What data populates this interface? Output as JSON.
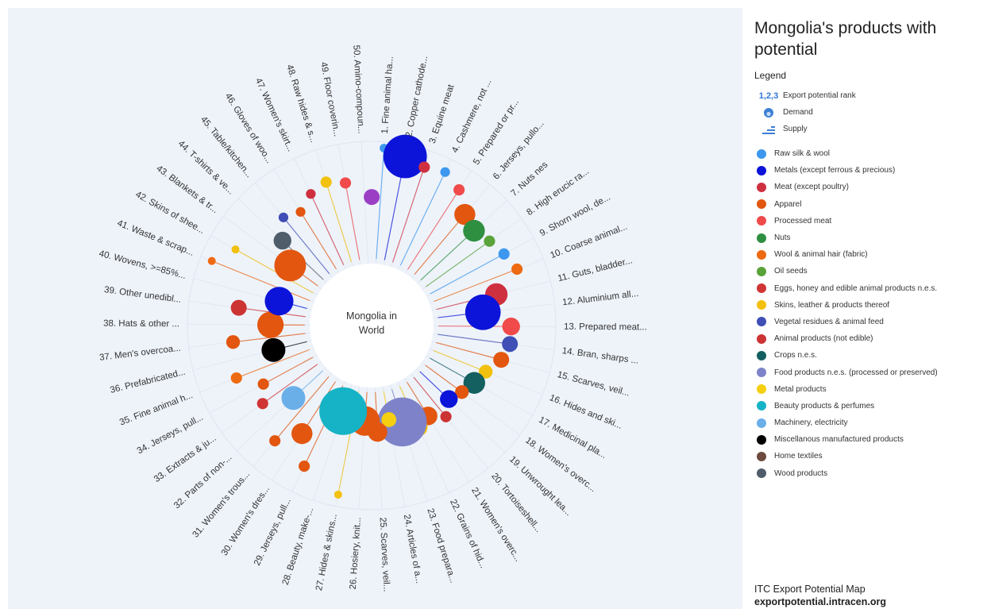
{
  "title": "Mongolia's products with potential",
  "legend": {
    "heading": "Legend",
    "keys": [
      {
        "icon": "rank-glyph",
        "glyph": "1,2,3",
        "label": "Export potential rank"
      },
      {
        "icon": "demand-icon",
        "label": "Demand"
      },
      {
        "icon": "supply-icon",
        "label": "Supply"
      }
    ],
    "categories": [
      {
        "label": "Raw silk & wool",
        "color": "#3d97ee"
      },
      {
        "label": "Metals (except ferrous & precious)",
        "color": "#0c14d9"
      },
      {
        "label": "Meat (except poultry)",
        "color": "#cf3040"
      },
      {
        "label": "Apparel",
        "color": "#e2560f"
      },
      {
        "label": "Processed meat",
        "color": "#f04a4a"
      },
      {
        "label": "Nuts",
        "color": "#2f8f41"
      },
      {
        "label": "Wool & animal hair (fabric)",
        "color": "#ee6a12"
      },
      {
        "label": "Oil seeds",
        "color": "#5aa33a"
      },
      {
        "label": "Eggs, honey and edible animal products n.e.s.",
        "color": "#d03535"
      },
      {
        "label": "Skins, leather & products thereof",
        "color": "#f2c10e"
      },
      {
        "label": "Vegetal residues & animal feed",
        "color": "#3f4fb5"
      },
      {
        "label": "Animal products (not edible)",
        "color": "#cc3333"
      },
      {
        "label": "Crops n.e.s.",
        "color": "#145f5f"
      },
      {
        "label": "Food products n.e.s. (processed or preserved)",
        "color": "#7e83c9"
      },
      {
        "label": "Metal products",
        "color": "#f5cf10"
      },
      {
        "label": "Beauty products & perfumes",
        "color": "#16b3c6"
      },
      {
        "label": "Machinery, electricity",
        "color": "#6aafe8"
      },
      {
        "label": "Miscellanous manufactured products",
        "color": "#000000"
      },
      {
        "label": "Home textiles",
        "color": "#6d4b3f"
      },
      {
        "label": "Wood products",
        "color": "#4f5d6b"
      }
    ]
  },
  "credit": {
    "line1": "ITC Export Potential Map",
    "line2": "exportpotential.intracen.org"
  },
  "chart_data": {
    "type": "radial-bubble",
    "center_label_lines": [
      "Mongolia in",
      "World"
    ],
    "products": [
      {
        "rank": 1,
        "label": "1. Fine animal ha...",
        "category": "Raw silk & wool",
        "demand": 1.2,
        "supply": 10.0
      },
      {
        "rank": 2,
        "label": "2. Copper cathode...",
        "category": "Metals (except ferrous & precious)",
        "demand": 30.0,
        "supply": 9.5
      },
      {
        "rank": 3,
        "label": "3. Equine meat",
        "category": "Meat (except poultry)",
        "demand": 2.0,
        "supply": 9.0
      },
      {
        "rank": 4,
        "label": "4. Cashmere, not ...",
        "category": "Raw silk & wool",
        "demand": 1.5,
        "supply": 9.3
      },
      {
        "rank": 5,
        "label": "5. Prepared or pr...",
        "category": "Processed meat",
        "demand": 2.0,
        "supply": 8.5
      },
      {
        "rank": 6,
        "label": "6. Jerseys, pullo...",
        "category": "Apparel",
        "demand": 7.0,
        "supply": 7.0
      },
      {
        "rank": 7,
        "label": "7. Nuts nes",
        "category": "Nuts",
        "demand": 7.5,
        "supply": 6.5
      },
      {
        "rank": 8,
        "label": "8. High erucic ra...",
        "category": "Oil seeds",
        "demand": 2.0,
        "supply": 7.0
      },
      {
        "rank": 9,
        "label": "9. Shorn wool, de...",
        "category": "Raw silk & wool",
        "demand": 2.0,
        "supply": 7.5
      },
      {
        "rank": 10,
        "label": "10. Coarse animal...",
        "category": "Wool & animal hair (fabric)",
        "demand": 2.0,
        "supply": 8.0
      },
      {
        "rank": 11,
        "label": "11. Guts, bladder...",
        "category": "Meat (except poultry)",
        "demand": 8.0,
        "supply": 5.5
      },
      {
        "rank": 12,
        "label": "12. Aluminium all...",
        "category": "Metals (except ferrous & precious)",
        "demand": 20.0,
        "supply": 4.0
      },
      {
        "rank": 13,
        "label": "13. Prepared meat...",
        "category": "Processed meat",
        "demand": 5.0,
        "supply": 6.5
      },
      {
        "rank": 14,
        "label": "14. Bran, sharps ...",
        "category": "Vegetal residues & animal feed",
        "demand": 4.0,
        "supply": 6.5
      },
      {
        "rank": 15,
        "label": "15. Scarves, veil...",
        "category": "Apparel",
        "demand": 4.0,
        "supply": 6.0
      },
      {
        "rank": 16,
        "label": "16. Hides and ski...",
        "category": "Skins, leather & products thereof",
        "demand": 3.0,
        "supply": 5.0
      },
      {
        "rank": 17,
        "label": "17. Medicinal pla...",
        "category": "Crops n.e.s.",
        "demand": 7.5,
        "supply": 4.5
      },
      {
        "rank": 18,
        "label": "18. Women's overc...",
        "category": "Apparel",
        "demand": 3.0,
        "supply": 4.0
      },
      {
        "rank": 19,
        "label": "19. Unwrought lea...",
        "category": "Metals (except ferrous & precious)",
        "demand": 5.0,
        "supply": 3.5
      },
      {
        "rank": 20,
        "label": "20. Tortoiseshell...",
        "category": "Animal products (not edible)",
        "demand": 2.0,
        "supply": 4.5
      },
      {
        "rank": 21,
        "label": "21. Women's overc...",
        "category": "Apparel",
        "demand": 5.5,
        "supply": 3.5
      },
      {
        "rank": 22,
        "label": "22. Grains of hid...",
        "category": "Skins, leather & products thereof",
        "demand": 5.0,
        "supply": 4.0
      },
      {
        "rank": 23,
        "label": "23. Food prepara...",
        "category": "Food products n.e.s. (processed or preserved)",
        "demand": 38.0,
        "supply": 3.0
      },
      {
        "rank": 24,
        "label": "24. Articles of a...",
        "category": "Metal products",
        "demand": 3.5,
        "supply": 2.5
      },
      {
        "rank": 25,
        "label": "25. Scarves, veil...",
        "category": "Apparel",
        "demand": 6.0,
        "supply": 3.5
      },
      {
        "rank": 26,
        "label": "26. Hosiery, knit...",
        "category": "Apparel",
        "demand": 14.0,
        "supply": 2.5
      },
      {
        "rank": 27,
        "label": "27. Hides & skins...",
        "category": "Skins, leather & products thereof",
        "demand": 1.0,
        "supply": 9.5
      },
      {
        "rank": 28,
        "label": "28. Beauty, make-...",
        "category": "Beauty products & perfumes",
        "demand": 36.0,
        "supply": 2.0
      },
      {
        "rank": 29,
        "label": "29. Jerseys, pull...",
        "category": "Apparel",
        "demand": 2.0,
        "supply": 8.0
      },
      {
        "rank": 30,
        "label": "30. Women's dres...",
        "category": "Apparel",
        "demand": 7.0,
        "supply": 5.5
      },
      {
        "rank": 31,
        "label": "31. Women's trous...",
        "category": "Apparel",
        "demand": 2.0,
        "supply": 7.5
      },
      {
        "rank": 32,
        "label": "32. Parts of non-...",
        "category": "Machinery, electricity",
        "demand": 9.0,
        "supply": 3.5
      },
      {
        "rank": 33,
        "label": "33. Extracts & ju...",
        "category": "Eggs, honey and edible animal products n.e.s.",
        "demand": 2.0,
        "supply": 6.0
      },
      {
        "rank": 34,
        "label": "34. Jerseys, pull...",
        "category": "Apparel",
        "demand": 2.0,
        "supply": 5.0
      },
      {
        "rank": 35,
        "label": "35. Fine animal h...",
        "category": "Wool & animal hair (fabric)",
        "demand": 2.0,
        "supply": 7.0
      },
      {
        "rank": 36,
        "label": "36. Prefabricated...",
        "category": "Miscellanous manufactured products",
        "demand": 9.0,
        "supply": 3.0
      },
      {
        "rank": 37,
        "label": "37. Men's overcoa...",
        "category": "Apparel",
        "demand": 3.0,
        "supply": 6.5
      },
      {
        "rank": 38,
        "label": "38. Hats & other ...",
        "category": "Apparel",
        "demand": 11.0,
        "supply": 3.0
      },
      {
        "rank": 39,
        "label": "39. Other unedibl...",
        "category": "Animal products (not edible)",
        "demand": 4.0,
        "supply": 6.0
      },
      {
        "rank": 40,
        "label": "40. Wovens, >=85%...",
        "category": "Metals (except ferrous & precious)",
        "demand": 13.0,
        "supply": 2.5
      },
      {
        "rank": 41,
        "label": "41. Waste & scrap...",
        "category": "Wool & animal hair (fabric)",
        "demand": 1.0,
        "supply": 9.5
      },
      {
        "rank": 42,
        "label": "42. Skins of shee...",
        "category": "Skins, leather & products thereof",
        "demand": 1.0,
        "supply": 8.0
      },
      {
        "rank": 43,
        "label": "43. Blankets & tr...",
        "category": "Apparel",
        "demand": 16.0,
        "supply": 3.0
      },
      {
        "rank": 44,
        "label": "44. T-shirts & ve...",
        "category": "Wood products",
        "demand": 5.0,
        "supply": 5.0
      },
      {
        "rank": 45,
        "label": "45. Table/kitchen...",
        "category": "Vegetal residues & animal feed",
        "demand": 1.5,
        "supply": 6.5
      },
      {
        "rank": 46,
        "label": "46. Gloves of woo...",
        "category": "Apparel",
        "demand": 1.5,
        "supply": 6.0
      },
      {
        "rank": 47,
        "label": "47. Women's skirt...",
        "category": "Meat (except poultry)",
        "demand": 1.5,
        "supply": 7.0
      },
      {
        "rank": 48,
        "label": "48. Raw hides & s...",
        "category": "Skins, leather & products thereof",
        "demand": 2.0,
        "supply": 7.5
      },
      {
        "rank": 49,
        "label": "49. Floor coverin...",
        "category": "Processed meat",
        "demand": 2.0,
        "supply": 7.0
      },
      {
        "rank": 50,
        "label": "50. Amino-compoun...",
        "category": "Home textiles",
        "demand": 0.0,
        "supply": 0.0
      }
    ],
    "extra_bubbles": [
      {
        "category": "Food products n.e.s. (processed or preserved)",
        "color": "#9b3fc4",
        "demand": 4.0,
        "supply": 5.5,
        "angle_after_rank": 50
      }
    ]
  }
}
